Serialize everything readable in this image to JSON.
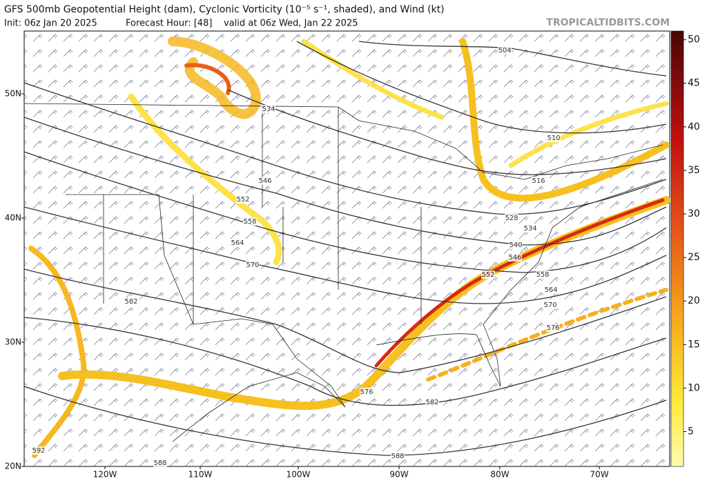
{
  "header": {
    "title": "GFS 500mb Geopotential Height (dam), Cyclonic Vorticity (10⁻⁵ s⁻¹, shaded), and Wind (kt)",
    "init": "Init: 06z Jan 20 2025",
    "forecast_hour": "Forecast Hour: [48]",
    "valid": "valid at 06z Wed, Jan 22 2025",
    "credit": "TROPICALTIDBITS.COM"
  },
  "map": {
    "lat_labels": [
      "50N",
      "40N",
      "30N",
      "20N"
    ],
    "lon_labels": [
      "120W",
      "110W",
      "100W",
      "90W",
      "80W",
      "70W"
    ],
    "contour_labels": [
      504,
      510,
      516,
      528,
      534,
      534,
      540,
      546,
      546,
      552,
      552,
      558,
      558,
      564,
      564,
      570,
      570,
      576,
      576,
      582,
      582,
      588,
      588,
      592
    ]
  },
  "colorbar": {
    "range": [
      1,
      51
    ],
    "ticks": [
      5,
      10,
      15,
      20,
      25,
      30,
      35,
      40,
      45,
      50
    ]
  }
}
